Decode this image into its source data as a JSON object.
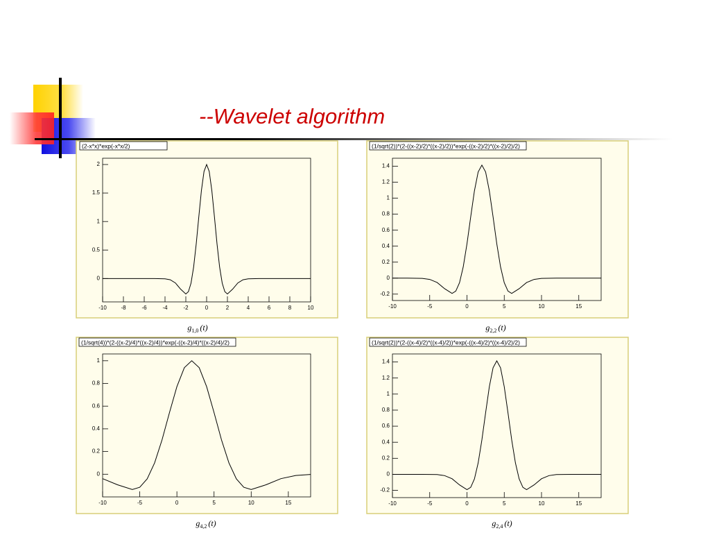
{
  "title": "--Wavelet algorithm",
  "chart_data": [
    {
      "type": "line",
      "title": "(2-x*x)*exp(-x*x/2)",
      "caption": [
        "g",
        "1,0",
        "(t)"
      ],
      "color": "#000000",
      "xlim": [
        -10,
        10
      ],
      "ylim": [
        -0.41,
        2.11
      ],
      "xticks": [
        -10,
        -8,
        -6,
        -4,
        -2,
        0,
        2,
        4,
        6,
        8,
        10
      ],
      "yticks": [
        0,
        0.5,
        1,
        1.5,
        2
      ],
      "x": [
        -10,
        -6,
        -5,
        -4,
        -3.5,
        -3,
        -2.5,
        -2,
        -1.75,
        -1.5,
        -1.25,
        -1,
        -0.75,
        -0.5,
        -0.25,
        0,
        0.25,
        0.5,
        0.75,
        1,
        1.25,
        1.5,
        1.75,
        2,
        2.5,
        3,
        3.5,
        4,
        5,
        6,
        10
      ],
      "values": [
        0,
        0,
        0,
        -0.005,
        -0.022,
        -0.078,
        -0.187,
        -0.271,
        -0.23,
        -0.081,
        0.2,
        0.607,
        1.085,
        1.544,
        1.878,
        2,
        1.878,
        1.544,
        1.085,
        0.607,
        0.2,
        -0.081,
        -0.23,
        -0.271,
        -0.187,
        -0.078,
        -0.022,
        -0.005,
        0,
        0,
        0
      ]
    },
    {
      "type": "line",
      "title": "(1/sqrt(2))*(2-((x-2)/2)*((x-2)/2))*exp(-((x-2)/2)*((x-2)/2)/2)",
      "caption": [
        "g",
        "2,2",
        "(t)"
      ],
      "color": "#000000",
      "xlim": [
        -10,
        18
      ],
      "ylim": [
        -0.28,
        1.5
      ],
      "xticks": [
        -10,
        -5,
        0,
        5,
        10,
        15
      ],
      "yticks": [
        -0.2,
        0,
        0.2,
        0.4,
        0.6,
        0.8,
        1,
        1.2,
        1.4
      ],
      "x": [
        -10,
        -8,
        -6,
        -5,
        -4,
        -3,
        -2,
        -1.5,
        -1,
        -0.5,
        0,
        0.5,
        1,
        1.5,
        2,
        2.5,
        3,
        3.5,
        4,
        4.5,
        5,
        5.5,
        6,
        7,
        8,
        9,
        10,
        12,
        14,
        18
      ],
      "values": [
        0,
        0,
        -0.003,
        -0.016,
        -0.055,
        -0.132,
        -0.191,
        -0.162,
        -0.057,
        0.142,
        0.429,
        0.767,
        1.092,
        1.328,
        1.414,
        1.328,
        1.092,
        0.767,
        0.429,
        0.142,
        -0.057,
        -0.162,
        -0.191,
        -0.132,
        -0.055,
        -0.016,
        -0.003,
        0,
        0,
        0
      ]
    },
    {
      "type": "line",
      "title": "(1/sqrt(4))*(2-((x-2)/4)*((x-2)/4))*exp(-((x-2)/4)*((x-2)/4)/2)",
      "caption": [
        "g",
        "4,2",
        "(t)"
      ],
      "color": "#000000",
      "xlim": [
        -10,
        18
      ],
      "ylim": [
        -0.2,
        1.06
      ],
      "xticks": [
        -10,
        -5,
        0,
        5,
        10,
        15
      ],
      "yticks": [
        0,
        0.2,
        0.4,
        0.6,
        0.8,
        1
      ],
      "x": [
        -10,
        -8,
        -6,
        -5,
        -4,
        -3,
        -2,
        -1,
        0,
        1,
        2,
        3,
        4,
        5,
        6,
        7,
        8,
        9,
        10,
        12,
        14,
        16,
        18
      ],
      "values": [
        -0.039,
        -0.093,
        -0.135,
        -0.115,
        -0.041,
        0.1,
        0.303,
        0.543,
        0.772,
        0.939,
        1,
        0.939,
        0.772,
        0.543,
        0.303,
        0.1,
        -0.041,
        -0.115,
        -0.135,
        -0.093,
        -0.039,
        -0.011,
        -0.002
      ]
    },
    {
      "type": "line",
      "title": "(1/sqrt(2))*(2-((x-4)/2)*((x-4)/2))*exp(-((x-4)/2)*((x-4)/2)/2)",
      "caption": [
        "g",
        "2,4",
        "(t)"
      ],
      "color": "#000000",
      "xlim": [
        -10,
        18
      ],
      "ylim": [
        -0.29,
        1.5
      ],
      "xticks": [
        -10,
        -5,
        0,
        5,
        10,
        15
      ],
      "yticks": [
        -0.2,
        0,
        0.2,
        0.4,
        0.6,
        0.8,
        1,
        1.2,
        1.4
      ],
      "x": [
        -10,
        -8,
        -6,
        -4,
        -3,
        -2,
        -1,
        0,
        0.5,
        1,
        1.5,
        2,
        2.5,
        3,
        3.5,
        4,
        4.5,
        5,
        5.5,
        6,
        6.5,
        7,
        7.5,
        8,
        9,
        10,
        11,
        12,
        14,
        18
      ],
      "values": [
        0,
        0,
        0,
        -0.003,
        -0.016,
        -0.055,
        -0.132,
        -0.191,
        -0.162,
        -0.057,
        0.142,
        0.429,
        0.767,
        1.092,
        1.328,
        1.414,
        1.328,
        1.092,
        0.767,
        0.429,
        0.142,
        -0.057,
        -0.162,
        -0.191,
        -0.132,
        -0.055,
        -0.016,
        -0.003,
        0,
        0
      ]
    }
  ]
}
